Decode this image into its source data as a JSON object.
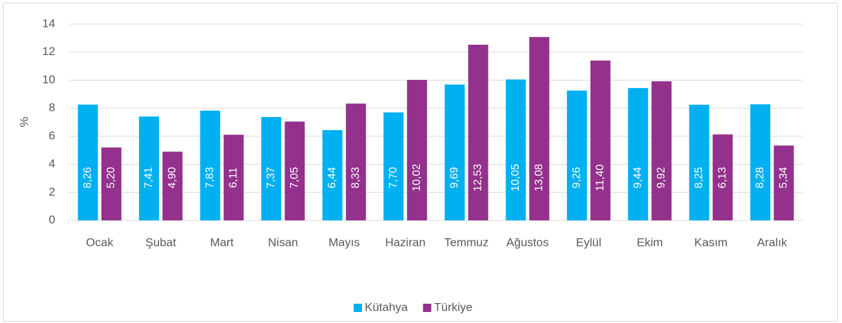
{
  "chart_data": {
    "type": "bar",
    "ylabel": "%",
    "categories": [
      "Ocak",
      "Şubat",
      "Mart",
      "Nisan",
      "Mayıs",
      "Haziran",
      "Temmuz",
      "Ağustos",
      "Eylül",
      "Ekim",
      "Kasım",
      "Aralık"
    ],
    "series": [
      {
        "name": "Kütahya",
        "color": "#00b0f0",
        "values": [
          8.26,
          7.41,
          7.83,
          7.37,
          6.44,
          7.7,
          9.69,
          10.05,
          9.26,
          9.44,
          8.25,
          8.28
        ],
        "value_labels": [
          "8,26",
          "7,41",
          "7,83",
          "7,37",
          "6,44",
          "7,70",
          "9,69",
          "10,05",
          "9,26",
          "9,44",
          "8,25",
          "8,28"
        ]
      },
      {
        "name": "Türkiye",
        "color": "#93318c",
        "values": [
          5.2,
          4.9,
          6.11,
          7.05,
          8.33,
          10.02,
          12.53,
          13.08,
          11.4,
          9.92,
          6.13,
          5.34
        ],
        "value_labels": [
          "5,20",
          "4,90",
          "6,11",
          "7,05",
          "8,33",
          "10,02",
          "12,53",
          "13,08",
          "11,40",
          "9,92",
          "6,13",
          "5,34"
        ]
      }
    ],
    "ylim": [
      0,
      14
    ],
    "yticks": [
      0,
      2,
      4,
      6,
      8,
      10,
      12,
      14
    ],
    "grid": true,
    "legend": "bottom"
  }
}
